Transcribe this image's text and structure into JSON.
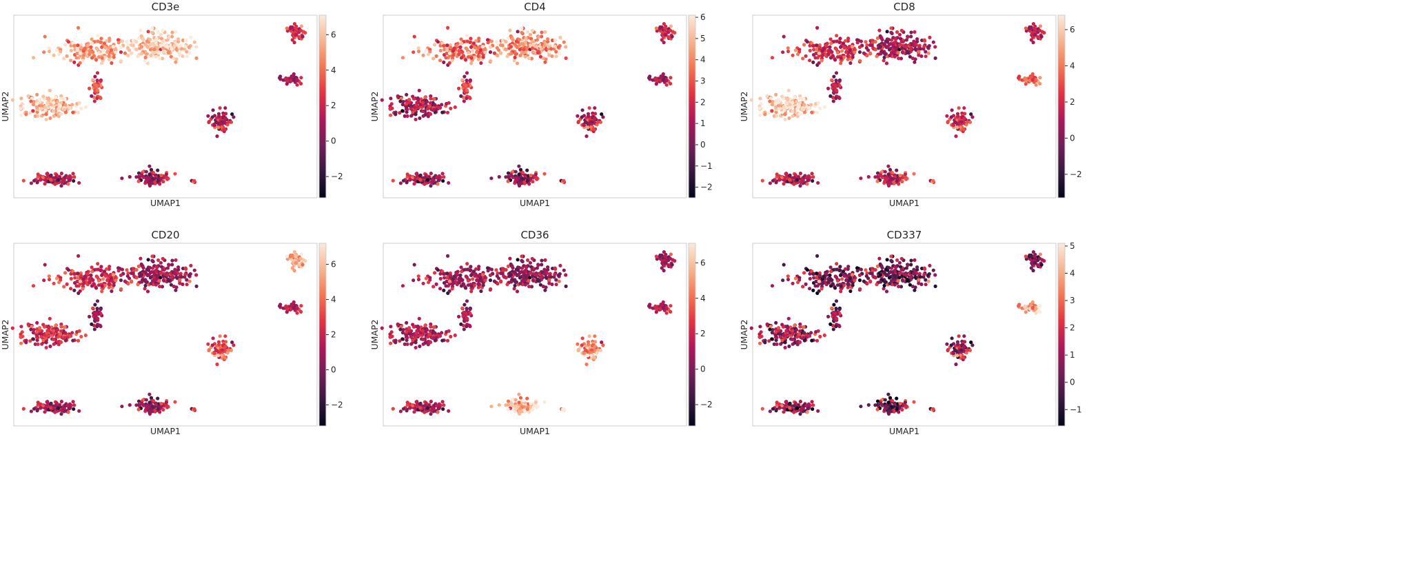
{
  "chart_data": [
    {
      "type": "scatter",
      "title": "CD3e",
      "xlabel": "UMAP1",
      "ylabel": "UMAP2",
      "colorbar": {
        "range": [
          -3.2,
          7.1
        ],
        "ticks": [
          -2,
          0,
          2,
          4,
          6
        ]
      },
      "cluster_mean_expression": [
        6.3,
        5.2,
        3.0,
        5.6,
        1.4,
        1.2,
        1.3,
        0.9,
        2.2
      ]
    },
    {
      "type": "scatter",
      "title": "CD4",
      "xlabel": "UMAP1",
      "ylabel": "UMAP2",
      "colorbar": {
        "range": [
          -2.5,
          6.1
        ],
        "ticks": [
          -2,
          -1,
          0,
          1,
          2,
          3,
          4,
          5,
          6
        ]
      },
      "cluster_mean_expression": [
        4.3,
        3.6,
        2.2,
        0.9,
        1.0,
        1.0,
        1.4,
        0.9,
        1.8
      ]
    },
    {
      "type": "scatter",
      "title": "CD8",
      "xlabel": "UMAP1",
      "ylabel": "UMAP2",
      "colorbar": {
        "range": [
          -3.3,
          6.8
        ],
        "ticks": [
          -2,
          0,
          2,
          4,
          6
        ]
      },
      "cluster_mean_expression": [
        1.0,
        2.2,
        1.0,
        5.8,
        1.2,
        1.8,
        1.9,
        3.2,
        1.4
      ]
    },
    {
      "type": "scatter",
      "title": "CD20",
      "xlabel": "UMAP1",
      "ylabel": "UMAP2",
      "colorbar": {
        "range": [
          -3.2,
          7.2
        ],
        "ticks": [
          -2,
          0,
          2,
          4,
          6
        ]
      },
      "cluster_mean_expression": [
        1.0,
        2.4,
        0.5,
        2.0,
        1.0,
        1.2,
        3.2,
        1.3,
        5.5
      ]
    },
    {
      "type": "scatter",
      "title": "CD36",
      "xlabel": "UMAP1",
      "ylabel": "UMAP2",
      "colorbar": {
        "range": [
          -3.2,
          7.1
        ],
        "ticks": [
          -2,
          0,
          2,
          4,
          6
        ]
      },
      "cluster_mean_expression": [
        0.6,
        1.1,
        0.9,
        1.0,
        1.2,
        6.2,
        4.6,
        1.3,
        0.8
      ]
    },
    {
      "type": "scatter",
      "title": "CD337",
      "xlabel": "UMAP1",
      "ylabel": "UMAP2",
      "colorbar": {
        "range": [
          -1.6,
          5.1
        ],
        "ticks": [
          -1,
          0,
          1,
          2,
          3,
          4,
          5
        ]
      },
      "cluster_mean_expression": [
        0.4,
        0.7,
        0.6,
        0.8,
        0.9,
        0.6,
        1.0,
        3.7,
        0.5
      ]
    }
  ],
  "colors": {
    "cmap_rocket": [
      "#03051a",
      "#36193e",
      "#701f57",
      "#ad1759",
      "#e13342",
      "#f37651",
      "#f6b48f",
      "#faebdd"
    ],
    "frame": "#cccccc",
    "text": "#262626"
  }
}
